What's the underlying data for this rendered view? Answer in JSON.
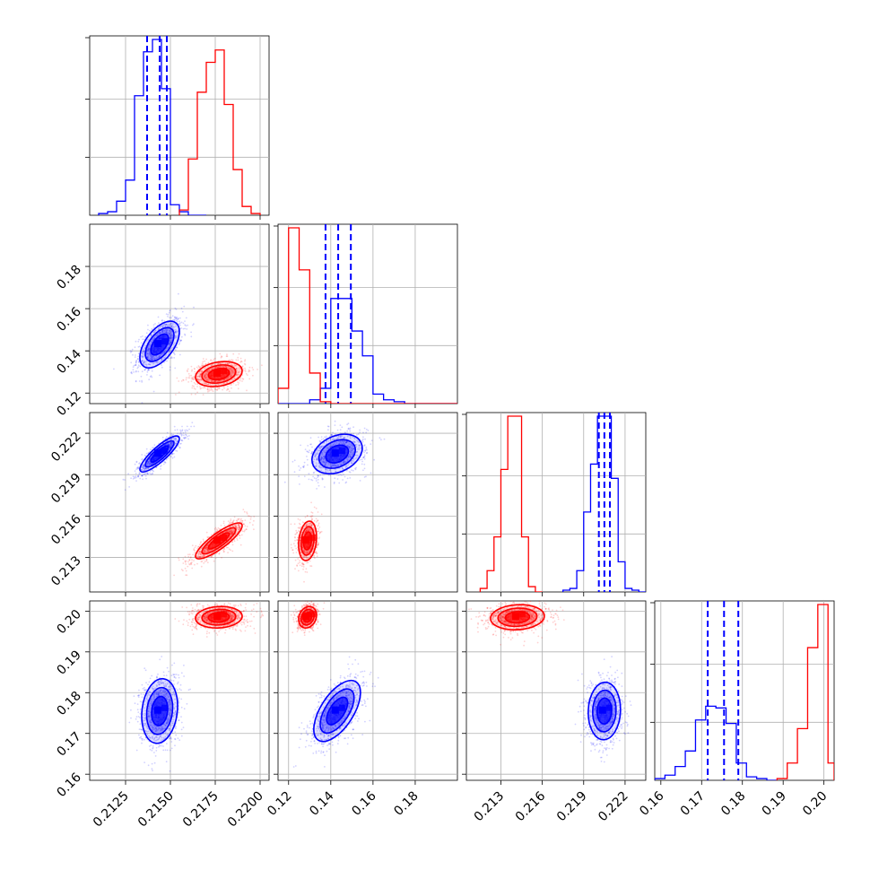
{
  "chart_data": {
    "type": "corner",
    "parameters": [
      "p1",
      "p2",
      "p3",
      "p4"
    ],
    "ranges": {
      "p1": [
        0.2105,
        0.2205
      ],
      "p2": [
        0.115,
        0.2
      ],
      "p3": [
        0.2105,
        0.2235
      ],
      "p4": [
        0.1585,
        0.2025
      ]
    },
    "ticks": {
      "p1": [
        "0.2125",
        "0.2150",
        "0.2175",
        "0.2200"
      ],
      "p2": [
        "0.12",
        "0.14",
        "0.16",
        "0.18"
      ],
      "p3": [
        "0.213",
        "0.216",
        "0.219",
        "0.222"
      ],
      "p4": [
        "0.16",
        "0.17",
        "0.18",
        "0.19",
        "0.20"
      ]
    },
    "grid": true,
    "colors": {
      "blue": "#0000ff",
      "red": "#ff0000"
    },
    "series": [
      {
        "color": "blue",
        "means": {
          "p1": 0.2144,
          "p2": 0.143,
          "p3": 0.2205,
          "p4": 0.1755
        },
        "quantiles": {
          "p1": [
            0.2137,
            0.2144,
            0.2148
          ],
          "p2": [
            0.1375,
            0.1435,
            0.1495
          ],
          "p3": [
            0.2201,
            0.2205,
            0.2209
          ],
          "p4": [
            0.1715,
            0.1755,
            0.179
          ]
        },
        "hist": {
          "p1": {
            "edges": [
              0.211,
              0.2115,
              0.212,
              0.2125,
              0.213,
              0.2135,
              0.214,
              0.2145,
              0.215,
              0.2155,
              0.216,
              0.2165,
              0.217
            ],
            "counts": [
              1,
              2,
              8,
              20,
              68,
              93,
              100,
              72,
              6,
              2,
              0,
              0
            ]
          },
          "p2": {
            "edges": [
              0.115,
              0.12,
              0.125,
              0.13,
              0.135,
              0.14,
              0.145,
              0.15,
              0.155,
              0.16,
              0.165,
              0.17,
              0.175,
              0.18,
              0.185,
              0.19,
              0.195,
              0.2
            ],
            "counts": [
              0,
              0,
              0,
              2,
              8,
              55,
              55,
              38,
              25,
              5,
              2,
              1,
              0,
              0,
              0,
              0,
              0
            ]
          },
          "p3": {
            "edges": [
              0.2175,
              0.218,
              0.2185,
              0.219,
              0.2195,
              0.22,
              0.2205,
              0.221,
              0.2215,
              0.222,
              0.2225,
              0.223,
              0.2235
            ],
            "counts": [
              1,
              2,
              12,
              45,
              72,
              99,
              99,
              64,
              17,
              2,
              1,
              0
            ]
          },
          "p4": {
            "edges": [
              0.1585,
              0.161,
              0.1635,
              0.166,
              0.1685,
              0.171,
              0.1735,
              0.176,
              0.1785,
              0.181,
              0.1835,
              0.186,
              0.1885
            ],
            "counts": [
              1,
              3,
              8,
              17,
              35,
              43,
              42,
              33,
              10,
              2,
              1,
              0
            ]
          }
        }
      },
      {
        "color": "red",
        "means": {
          "p1": 0.2177,
          "p2": 0.129,
          "p3": 0.2142,
          "p4": 0.1985
        },
        "hist": {
          "p1": {
            "edges": [
              0.2155,
              0.216,
              0.2165,
              0.217,
              0.2175,
              0.218,
              0.2185,
              0.219,
              0.2195,
              0.22
            ],
            "counts": [
              3,
              32,
              70,
              87,
              94,
              63,
              26,
              5,
              1
            ]
          },
          "p2": {
            "edges": [
              0.115,
              0.12,
              0.125,
              0.13,
              0.135,
              0.14,
              0.145,
              0.15,
              0.155,
              0.16,
              0.165,
              0.17,
              0.175,
              0.18,
              0.185,
              0.19,
              0.195,
              0.2
            ],
            "counts": [
              8,
              92,
              70,
              16,
              1,
              0,
              0,
              0,
              0,
              0,
              0,
              0,
              0,
              0,
              0,
              0,
              0
            ]
          },
          "p3": {
            "edges": [
              0.2115,
              0.212,
              0.2125,
              0.213,
              0.2135,
              0.214,
              0.2145,
              0.215,
              0.2155,
              0.216
            ],
            "counts": [
              2,
              12,
              31,
              69,
              99,
              99,
              31,
              3,
              0
            ]
          },
          "p4": {
            "edges": [
              0.1885,
              0.191,
              0.1935,
              0.196,
              0.1985,
              0.201,
              0.2025
            ],
            "counts": [
              1,
              10,
              30,
              77,
              102,
              10
            ]
          }
        }
      }
    ]
  }
}
